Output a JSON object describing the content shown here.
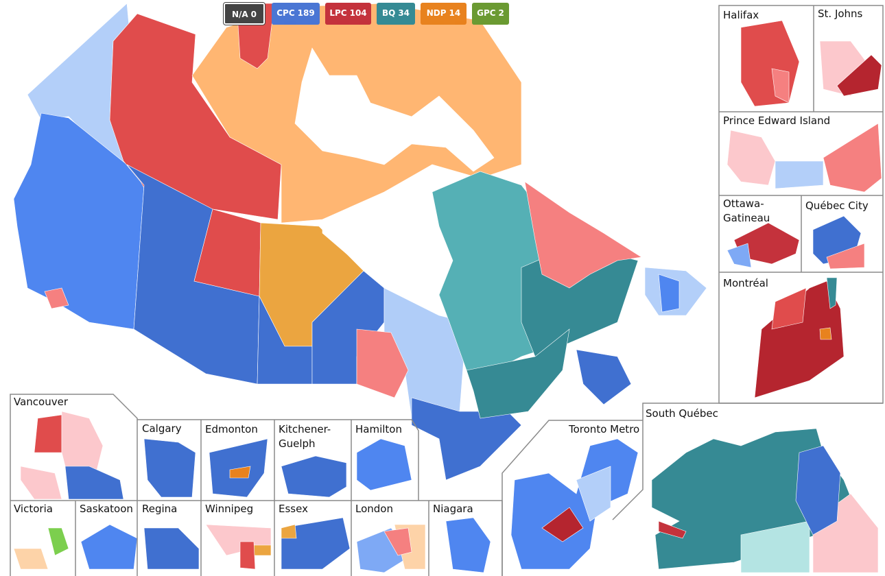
{
  "legend": [
    {
      "party": "N/A",
      "seats": 0,
      "color": "#444444"
    },
    {
      "party": "CPC",
      "seats": 189,
      "color": "#4a76d4"
    },
    {
      "party": "LPC",
      "seats": 104,
      "color": "#c4323c"
    },
    {
      "party": "BQ",
      "seats": 34,
      "color": "#358a94"
    },
    {
      "party": "NDP",
      "seats": 14,
      "color": "#e8821e"
    },
    {
      "party": "GPC",
      "seats": 2,
      "color": "#6b9a32"
    }
  ],
  "insets": [
    {
      "label": "Halifax"
    },
    {
      "label": "St. Johns"
    },
    {
      "label": "Prince Edward Island"
    },
    {
      "label": "Ottawa-Gatineau"
    },
    {
      "label": "Québec City"
    },
    {
      "label": "Montréal"
    },
    {
      "label": "South Québec"
    },
    {
      "label": "Toronto Metro"
    },
    {
      "label": "Vancouver"
    },
    {
      "label": "Calgary"
    },
    {
      "label": "Edmonton"
    },
    {
      "label": "Kitchener-Guelph"
    },
    {
      "label": "Hamilton"
    },
    {
      "label": "Victoria"
    },
    {
      "label": "Saskatoon"
    },
    {
      "label": "Regina"
    },
    {
      "label": "Winnipeg"
    },
    {
      "label": "Essex"
    },
    {
      "label": "London"
    },
    {
      "label": "Niagara"
    }
  ]
}
